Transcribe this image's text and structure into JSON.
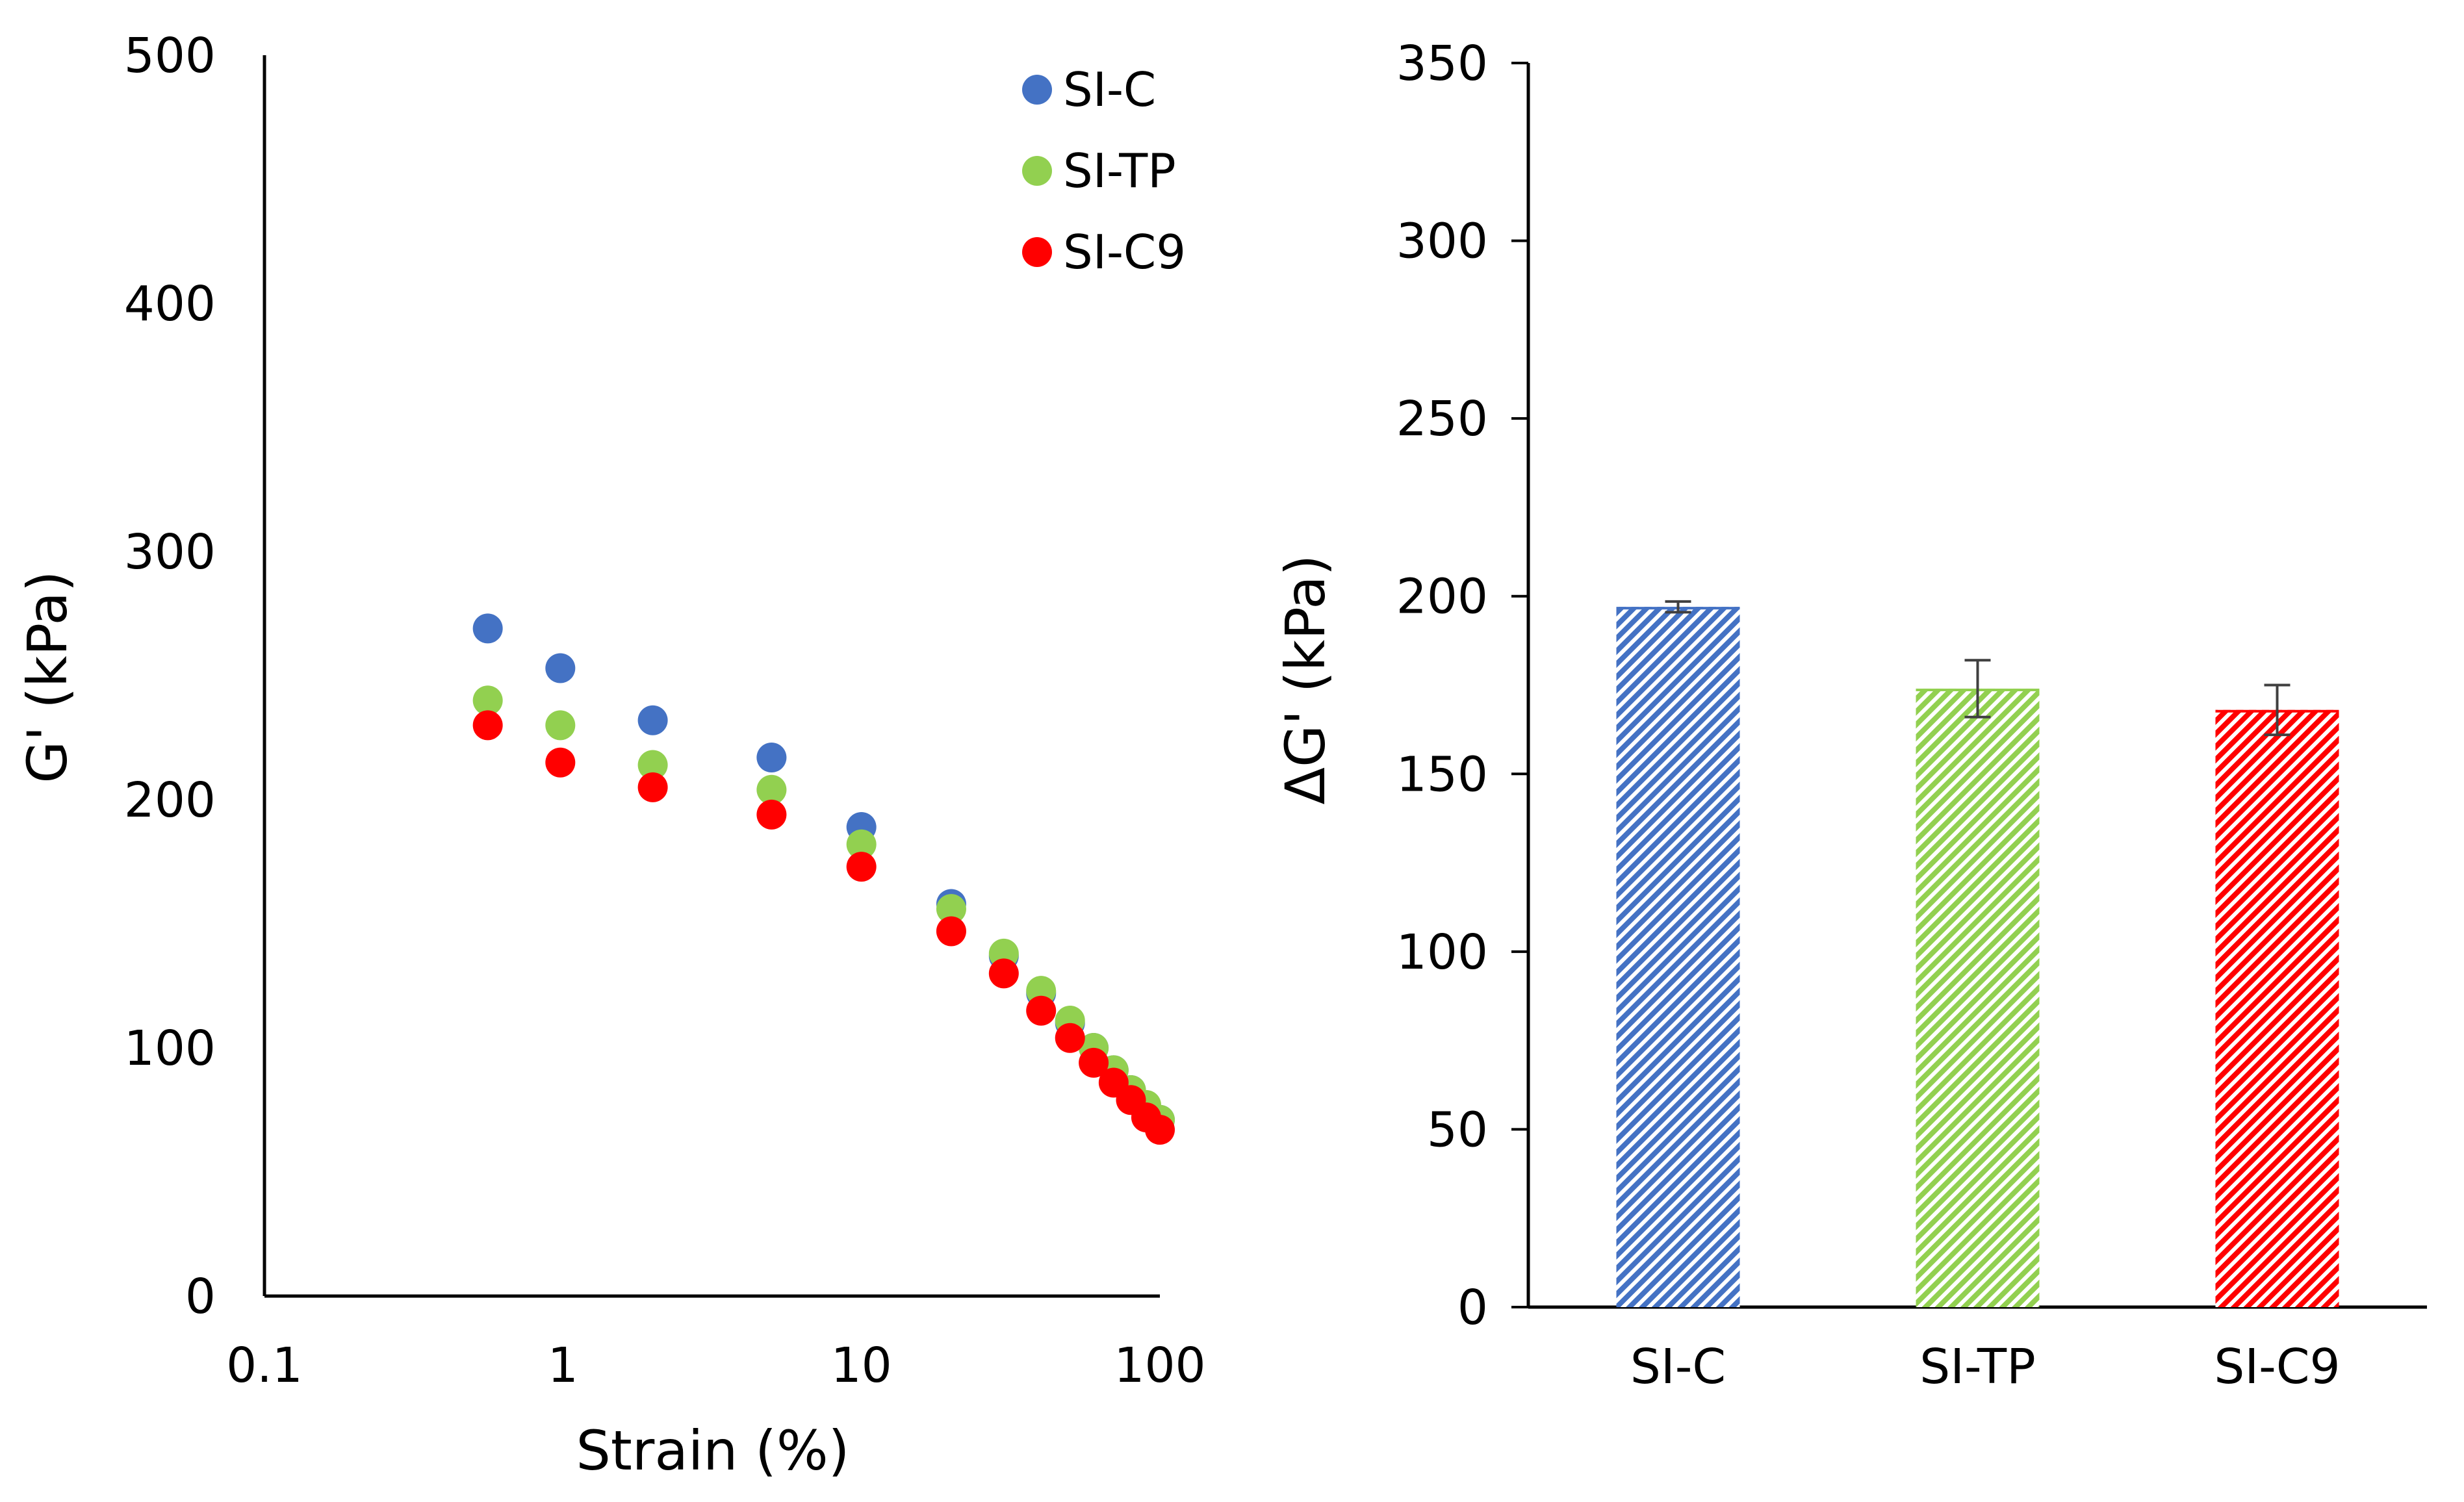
{
  "chart_data": [
    {
      "type": "scatter",
      "xscale": "log",
      "xlabel": "Strain (%)",
      "ylabel": "G' (kPa)",
      "xlim": [
        0.1,
        100
      ],
      "ylim": [
        0,
        500
      ],
      "xticks": [
        0.1,
        1,
        10,
        100
      ],
      "xtick_labels": [
        "0.1",
        "1",
        "10",
        "100"
      ],
      "yticks": [
        0,
        100,
        200,
        300,
        400,
        500
      ],
      "ytick_labels": [
        "0",
        "100",
        "200",
        "300",
        "400",
        "500"
      ],
      "legend_position": "top-right",
      "series": [
        {
          "name": "SI-C",
          "color": "#4472C4",
          "x": [
            0.56,
            0.98,
            2.0,
            5.0,
            10,
            20,
            30,
            40,
            50,
            60,
            70,
            80,
            90,
            100
          ],
          "y": [
            269,
            253,
            232,
            217,
            189,
            158,
            137,
            122,
            110,
            100,
            91,
            83,
            76,
            71
          ]
        },
        {
          "name": "SI-TP",
          "color": "#92D050",
          "x": [
            0.56,
            0.98,
            2.0,
            5.0,
            10,
            20,
            30,
            40,
            50,
            60,
            70,
            80,
            90,
            100
          ],
          "y": [
            240,
            230,
            214,
            204,
            182,
            156,
            138,
            123,
            111,
            100,
            91,
            83,
            77,
            71
          ]
        },
        {
          "name": "SI-C9",
          "color": "#FF0000",
          "x": [
            0.56,
            0.98,
            2.0,
            5.0,
            10,
            20,
            30,
            40,
            50,
            60,
            70,
            80,
            90,
            100
          ],
          "y": [
            230,
            215,
            205,
            194,
            173,
            147,
            130,
            115,
            104,
            94,
            86,
            79,
            72,
            67
          ]
        }
      ]
    },
    {
      "type": "bar",
      "xlabel": "",
      "ylabel": "ΔG' (kPa)",
      "ylim": [
        0,
        350
      ],
      "yticks": [
        0,
        50,
        100,
        150,
        200,
        250,
        300,
        350
      ],
      "ytick_labels": [
        "0",
        "50",
        "100",
        "150",
        "200",
        "250",
        "300",
        "350"
      ],
      "categories": [
        "SI-C",
        "SI-TP",
        "SI-C9"
      ],
      "values": [
        197,
        174,
        168
      ],
      "errors": [
        1.5,
        8,
        7
      ],
      "colors": [
        "#4472C4",
        "#92D050",
        "#FF0000"
      ],
      "fill_pattern": "diagonal-hatch"
    }
  ]
}
